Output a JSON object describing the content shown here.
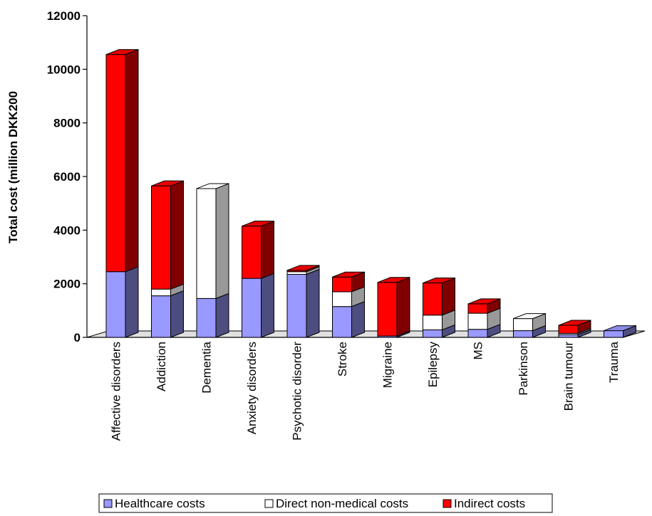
{
  "chart_data": {
    "type": "bar",
    "stacked": true,
    "three_d": true,
    "title": "",
    "xlabel": "",
    "ylabel": "Total cost (million DKK200",
    "ylim": [
      0,
      12000
    ],
    "yticks": [
      0,
      2000,
      4000,
      6000,
      8000,
      10000,
      12000
    ],
    "grid": false,
    "legend_position": "bottom",
    "categories": [
      "Affective disorders",
      "Addiction",
      "Dementia",
      "Anxiety disorders",
      "Psychotic disorder",
      "Stroke",
      "Migraine",
      "Epilepsy",
      "MS",
      "Parkinson",
      "Brain tumour",
      "Trauma"
    ],
    "series": [
      {
        "name": "Healthcare costs",
        "color": "#9999ff",
        "values": [
          2450,
          1550,
          1450,
          2200,
          2350,
          1150,
          50,
          280,
          300,
          250,
          100,
          250
        ]
      },
      {
        "name": "Direct non-medical costs",
        "color": "#ffffff",
        "values": [
          0,
          250,
          4100,
          0,
          100,
          550,
          0,
          550,
          600,
          450,
          50,
          0
        ]
      },
      {
        "name": "Indirect costs",
        "color": "#ff0000",
        "values": [
          8100,
          3850,
          0,
          1950,
          50,
          550,
          2000,
          1200,
          350,
          0,
          300,
          0
        ]
      }
    ]
  }
}
